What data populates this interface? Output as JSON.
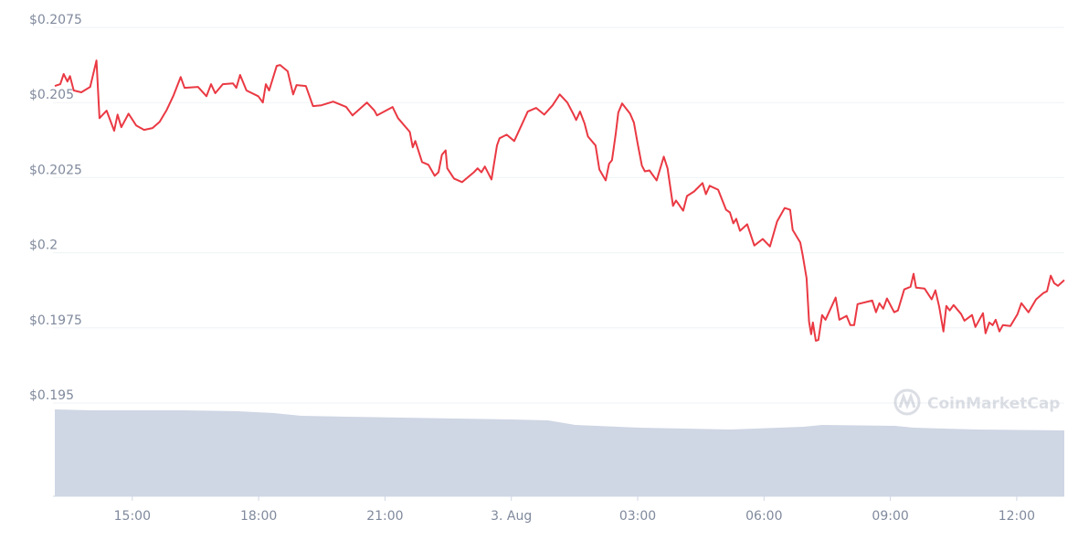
{
  "chart_data": {
    "type": "line",
    "x": [
      13.16,
      13.29,
      13.37,
      13.46,
      13.52,
      13.61,
      13.79,
      14.0,
      14.15,
      14.22,
      14.39,
      14.57,
      14.65,
      14.74,
      14.91,
      15.09,
      15.28,
      15.48,
      15.65,
      15.82,
      15.98,
      16.15,
      16.24,
      16.56,
      16.76,
      16.87,
      16.97,
      17.15,
      17.39,
      17.47,
      17.56,
      17.71,
      17.99,
      18.1,
      18.17,
      18.25,
      18.43,
      18.51,
      18.69,
      18.82,
      18.9,
      19.12,
      19.29,
      19.49,
      19.77,
      20.08,
      20.23,
      20.57,
      20.75,
      20.81,
      21.18,
      21.31,
      21.59,
      21.66,
      21.72,
      21.88,
      22.03,
      22.18,
      22.27,
      22.35,
      22.44,
      22.48,
      22.64,
      22.83,
      23.11,
      23.2,
      23.29,
      23.37,
      23.53,
      23.66,
      23.72,
      23.89,
      24.07,
      24.26,
      24.39,
      24.59,
      24.78,
      24.98,
      25.15,
      25.33,
      25.48,
      25.54,
      25.63,
      25.74,
      25.82,
      26.0,
      26.09,
      26.24,
      26.32,
      26.39,
      26.48,
      26.54,
      26.63,
      26.82,
      26.91,
      27.0,
      27.1,
      27.17,
      27.28,
      27.45,
      27.62,
      27.71,
      27.84,
      27.91,
      28.08,
      28.17,
      28.34,
      28.54,
      28.62,
      28.71,
      28.91,
      29.1,
      29.19,
      29.27,
      29.34,
      29.43,
      29.6,
      29.77,
      29.97,
      30.14,
      30.31,
      30.49,
      30.62,
      30.68,
      30.86,
      30.92,
      31.01,
      31.07,
      31.12,
      31.16,
      31.23,
      31.29,
      31.38,
      31.46,
      31.64,
      31.7,
      31.79,
      31.96,
      32.05,
      32.14,
      32.22,
      32.48,
      32.57,
      32.66,
      32.74,
      32.83,
      32.92,
      33.09,
      33.18,
      33.33,
      33.48,
      33.55,
      33.61,
      33.81,
      33.98,
      34.07,
      34.16,
      34.26,
      34.33,
      34.41,
      34.5,
      34.68,
      34.76,
      34.94,
      35.02,
      35.2,
      35.26,
      35.35,
      35.43,
      35.5,
      35.59,
      35.67,
      35.85,
      36.02,
      36.11,
      36.28,
      36.46,
      36.63,
      36.72,
      36.81,
      36.89,
      36.98,
      37.13
    ],
    "series": [
      {
        "color": "#ea3943",
        "values": [
          0.20555,
          0.20561,
          0.20595,
          0.2057,
          0.20588,
          0.2054,
          0.20534,
          0.20552,
          0.2064,
          0.20448,
          0.20473,
          0.20406,
          0.2046,
          0.20418,
          0.20463,
          0.20424,
          0.20409,
          0.20415,
          0.20436,
          0.20476,
          0.20524,
          0.20585,
          0.20549,
          0.20552,
          0.20521,
          0.20561,
          0.20531,
          0.20561,
          0.20564,
          0.20549,
          0.20592,
          0.2054,
          0.20521,
          0.205,
          0.20561,
          0.2054,
          0.20622,
          0.20625,
          0.20604,
          0.20527,
          0.20558,
          0.20555,
          0.20488,
          0.20491,
          0.20503,
          0.20485,
          0.20457,
          0.205,
          0.20473,
          0.20457,
          0.20485,
          0.20448,
          0.20402,
          0.20351,
          0.20372,
          0.20302,
          0.20293,
          0.20256,
          0.20268,
          0.20326,
          0.20341,
          0.20281,
          0.20247,
          0.20235,
          0.20268,
          0.20281,
          0.20268,
          0.20287,
          0.20244,
          0.20357,
          0.20381,
          0.20393,
          0.20372,
          0.2043,
          0.2047,
          0.20482,
          0.2046,
          0.20491,
          0.20527,
          0.205,
          0.2046,
          0.20442,
          0.2047,
          0.2043,
          0.20387,
          0.20357,
          0.20277,
          0.20241,
          0.20296,
          0.20308,
          0.20396,
          0.20467,
          0.20497,
          0.20463,
          0.20433,
          0.20363,
          0.2029,
          0.20271,
          0.20274,
          0.20241,
          0.2032,
          0.20281,
          0.20156,
          0.20174,
          0.2014,
          0.20189,
          0.20204,
          0.20232,
          0.20195,
          0.20223,
          0.2021,
          0.20143,
          0.20134,
          0.20098,
          0.20113,
          0.20073,
          0.20095,
          0.20024,
          0.20046,
          0.20021,
          0.20104,
          0.20149,
          0.20143,
          0.20076,
          0.20034,
          0.19991,
          0.19915,
          0.19771,
          0.19729,
          0.19768,
          0.19707,
          0.1971,
          0.19793,
          0.19777,
          0.19832,
          0.19851,
          0.19777,
          0.1979,
          0.19759,
          0.19759,
          0.19829,
          0.19838,
          0.19841,
          0.19802,
          0.19832,
          0.19814,
          0.19848,
          0.19802,
          0.19808,
          0.19878,
          0.19887,
          0.1993,
          0.19884,
          0.19881,
          0.19845,
          0.19875,
          0.1982,
          0.19738,
          0.19823,
          0.19808,
          0.19826,
          0.19796,
          0.19774,
          0.19793,
          0.19753,
          0.19799,
          0.19732,
          0.19768,
          0.19759,
          0.19777,
          0.19738,
          0.19759,
          0.19756,
          0.19796,
          0.19832,
          0.19802,
          0.19845,
          0.19866,
          0.19872,
          0.19924,
          0.19899,
          0.1989,
          0.19909
        ]
      }
    ],
    "xlim": [
      13.16,
      37.13
    ],
    "xticks": [
      {
        "value": 15,
        "label": "15:00"
      },
      {
        "value": 18,
        "label": "18:00"
      },
      {
        "value": 21,
        "label": "21:00"
      },
      {
        "value": 24,
        "label": "3. Aug"
      },
      {
        "value": 27,
        "label": "03:00"
      },
      {
        "value": 30,
        "label": "06:00"
      },
      {
        "value": 33,
        "label": "09:00"
      },
      {
        "value": 36,
        "label": "12:00"
      }
    ],
    "ylim": [
      0.195,
      0.2075
    ],
    "yticks": [
      {
        "value": 0.195,
        "label": "$0.195"
      },
      {
        "value": 0.1975,
        "label": "$0.1975"
      },
      {
        "value": 0.2,
        "label": "$0.2"
      },
      {
        "value": 0.2025,
        "label": "$0.2025"
      },
      {
        "value": 0.205,
        "label": "$0.205"
      },
      {
        "value": 0.2075,
        "label": "$0.2075"
      }
    ],
    "grid": true,
    "volume": {
      "color": "#cfd6e4",
      "ylim": [
        0,
        100
      ],
      "x": [
        13.16,
        14.03,
        14.89,
        16.2,
        17.5,
        18.36,
        19.01,
        20.1,
        21.4,
        22.7,
        24.0,
        24.87,
        25.52,
        27.04,
        29.21,
        30.94,
        31.38,
        33.11,
        33.55,
        35.06,
        37.13
      ],
      "values": [
        95,
        94,
        94,
        94,
        93,
        91,
        88,
        87,
        86,
        85,
        84,
        83,
        78,
        75,
        73,
        76,
        78,
        77,
        75,
        73,
        72
      ]
    },
    "watermark": "CoinMarketCap"
  }
}
